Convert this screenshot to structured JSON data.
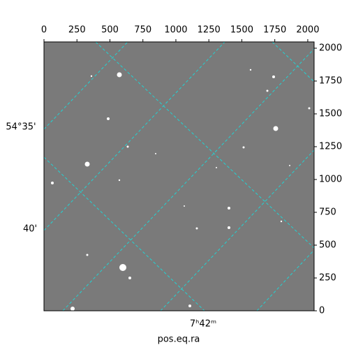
{
  "chart_data": {
    "type": "image",
    "xlabel": "pos.eq.ra",
    "xlim": [
      0,
      2048
    ],
    "xticks": [
      0,
      250,
      500,
      750,
      1000,
      1250,
      1500,
      1750,
      2000
    ],
    "ylim": [
      0,
      2048
    ],
    "yticks": [
      0,
      250,
      500,
      750,
      1000,
      1250,
      1500,
      1750,
      2000
    ],
    "dec_tick_labels": [
      "54°35'",
      "40'"
    ],
    "ra_tick_labels": [
      "7ʰ42ᵐ"
    ]
  }
}
